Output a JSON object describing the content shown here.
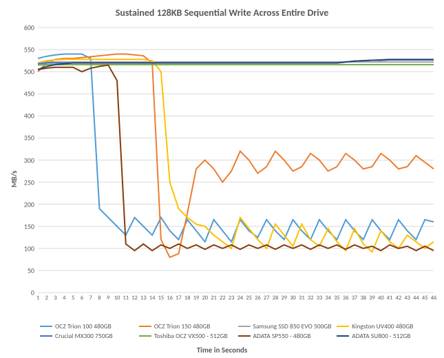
{
  "chart": {
    "type": "line",
    "title": "Sustained 128KB Sequential Write Across Entire Drive",
    "title_fontsize": 14,
    "title_color": "#595959",
    "ylabel": "MB/s",
    "xlabel": "Time in Seconds",
    "label_fontsize": 11,
    "background_color": "#ffffff",
    "grid_color": "#d9d9d9",
    "ylim": [
      0,
      600
    ],
    "ytick_step": 50,
    "yticks": [
      0,
      50,
      100,
      150,
      200,
      250,
      300,
      350,
      400,
      450,
      500,
      550,
      600
    ],
    "xticks": [
      1,
      2,
      3,
      4,
      5,
      6,
      7,
      8,
      9,
      10,
      11,
      12,
      13,
      14,
      15,
      16,
      17,
      18,
      19,
      20,
      21,
      22,
      23,
      24,
      25,
      26,
      27,
      28,
      29,
      30,
      31,
      32,
      33,
      34,
      35,
      36,
      37,
      38,
      39,
      40,
      41,
      42,
      43,
      44,
      45,
      46
    ],
    "line_width": 2,
    "series": [
      {
        "name": "OCZ Trion 100 480GB",
        "color": "#4f9bd5",
        "values": [
          530,
          535,
          538,
          540,
          540,
          540,
          530,
          190,
          170,
          150,
          130,
          170,
          150,
          130,
          170,
          140,
          120,
          165,
          140,
          115,
          165,
          140,
          115,
          165,
          140,
          125,
          165,
          140,
          120,
          165,
          140,
          120,
          165,
          140,
          120,
          165,
          140,
          120,
          165,
          140,
          120,
          165,
          140,
          120,
          165,
          160
        ]
      },
      {
        "name": "OCZ Trion 150 480GB",
        "color": "#ed7d31",
        "values": [
          500,
          520,
          528,
          530,
          530,
          532,
          534,
          536,
          538,
          540,
          540,
          538,
          536,
          520,
          120,
          80,
          88,
          180,
          280,
          300,
          280,
          250,
          275,
          320,
          300,
          270,
          285,
          320,
          300,
          275,
          285,
          315,
          300,
          275,
          285,
          315,
          300,
          280,
          285,
          315,
          300,
          280,
          285,
          310,
          295,
          280
        ]
      },
      {
        "name": "Samsung SSD 850 EVO 500GB",
        "color": "#a5a5a5",
        "values": [
          520,
          522,
          522,
          522,
          522,
          522,
          522,
          522,
          522,
          522,
          522,
          522,
          522,
          522,
          522,
          522,
          522,
          522,
          522,
          522,
          522,
          522,
          522,
          522,
          522,
          522,
          522,
          522,
          522,
          522,
          522,
          522,
          522,
          522,
          522,
          522,
          522,
          522,
          522,
          522,
          522,
          522,
          522,
          522,
          522,
          522
        ]
      },
      {
        "name": "Kingston UV400 480GB",
        "color": "#ffc000",
        "values": [
          520,
          525,
          527,
          528,
          528,
          528,
          528,
          528,
          528,
          528,
          528,
          528,
          528,
          525,
          500,
          250,
          190,
          170,
          155,
          150,
          130,
          115,
          100,
          170,
          145,
          120,
          100,
          155,
          130,
          105,
          155,
          120,
          105,
          145,
          115,
          95,
          145,
          110,
          92,
          140,
          115,
          100,
          130,
          115,
          100,
          115
        ]
      },
      {
        "name": "Crucial MX300 750GB",
        "color": "#4472c4",
        "values": [
          518,
          520,
          520,
          520,
          520,
          520,
          520,
          520,
          520,
          520,
          520,
          520,
          520,
          520,
          520,
          520,
          520,
          520,
          520,
          520,
          520,
          520,
          520,
          520,
          520,
          520,
          520,
          520,
          520,
          520,
          520,
          520,
          520,
          520,
          520,
          522,
          524,
          525,
          526,
          527,
          528,
          528,
          528,
          528,
          528,
          528
        ]
      },
      {
        "name": "Toshiba OCZ VX500 - 512GB",
        "color": "#70ad47",
        "values": [
          515,
          516,
          516,
          516,
          516,
          516,
          516,
          516,
          516,
          516,
          516,
          516,
          516,
          516,
          516,
          516,
          516,
          516,
          516,
          516,
          516,
          516,
          516,
          516,
          516,
          516,
          516,
          516,
          516,
          516,
          516,
          516,
          516,
          516,
          516,
          516,
          516,
          516,
          516,
          516,
          516,
          516,
          516,
          516,
          516,
          516
        ]
      },
      {
        "name": "ADATA SP550 - 480GB",
        "color": "#843c0c",
        "values": [
          505,
          508,
          510,
          510,
          510,
          500,
          508,
          512,
          515,
          480,
          110,
          95,
          110,
          95,
          108,
          100,
          110,
          100,
          108,
          98,
          108,
          100,
          108,
          98,
          108,
          100,
          108,
          98,
          108,
          100,
          108,
          98,
          108,
          100,
          108,
          98,
          108,
          100,
          105,
          95,
          108,
          100,
          105,
          95,
          105,
          95
        ]
      },
      {
        "name": "ADATA SU800 - 512GB",
        "color": "#264478",
        "values": [
          505,
          512,
          516,
          518,
          520,
          520,
          520,
          520,
          520,
          520,
          520,
          520,
          520,
          520,
          520,
          520,
          520,
          520,
          520,
          520,
          520,
          520,
          520,
          520,
          520,
          520,
          520,
          520,
          520,
          520,
          520,
          520,
          520,
          520,
          520,
          522,
          524,
          525,
          526,
          526,
          527,
          527,
          527,
          527,
          527,
          527
        ]
      }
    ]
  }
}
